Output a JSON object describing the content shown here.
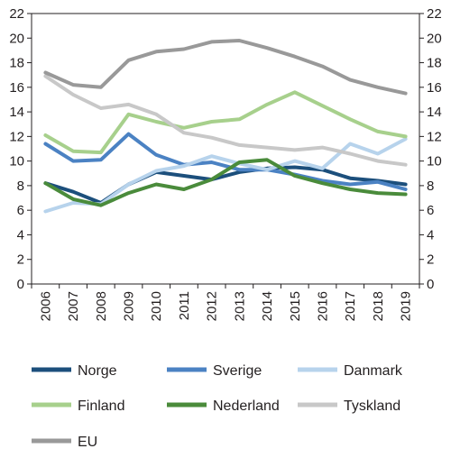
{
  "chart_data": {
    "type": "line",
    "title": "",
    "xlabel": "",
    "ylabel": "",
    "categories": [
      "2006",
      "2007",
      "2008",
      "2009",
      "2010",
      "2011",
      "2012",
      "2013",
      "2014",
      "2015",
      "2016",
      "2017",
      "2018",
      "2019"
    ],
    "ylim": [
      0,
      22
    ],
    "yticks": [
      0,
      2,
      4,
      6,
      8,
      10,
      12,
      14,
      16,
      18,
      20,
      22
    ],
    "y_axis_right_mirror": true,
    "grid": false,
    "legend_position": "bottom",
    "series": [
      {
        "name": "Norge",
        "color": "#1c4f7c",
        "values": [
          8.2,
          7.5,
          6.6,
          8.1,
          9.1,
          8.8,
          8.5,
          9.1,
          9.4,
          9.5,
          9.3,
          8.6,
          8.4,
          8.1
        ]
      },
      {
        "name": "Sverige",
        "color": "#4b82c3",
        "values": [
          11.4,
          10.0,
          10.1,
          12.2,
          10.5,
          9.7,
          9.9,
          9.3,
          9.3,
          8.9,
          8.4,
          8.1,
          8.3,
          7.7
        ]
      },
      {
        "name": "Danmark",
        "color": "#b7d3ec",
        "values": [
          5.9,
          6.6,
          6.5,
          8.1,
          9.2,
          9.6,
          10.4,
          9.8,
          9.3,
          10.0,
          9.4,
          11.4,
          10.6,
          11.8
        ]
      },
      {
        "name": "Finland",
        "color": "#a7d08c",
        "values": [
          12.1,
          10.8,
          10.7,
          13.8,
          13.2,
          12.7,
          13.2,
          13.4,
          14.6,
          15.6,
          14.5,
          13.4,
          12.4,
          12.0
        ]
      },
      {
        "name": "Nederland",
        "color": "#4a8b3b",
        "values": [
          8.2,
          6.9,
          6.4,
          7.4,
          8.1,
          7.7,
          8.5,
          9.9,
          10.1,
          8.8,
          8.2,
          7.7,
          7.4,
          7.3
        ]
      },
      {
        "name": "Tyskland",
        "color": "#c8c8c8",
        "values": [
          16.9,
          15.4,
          14.3,
          14.6,
          13.8,
          12.3,
          11.9,
          11.3,
          11.1,
          10.9,
          11.1,
          10.6,
          10.0,
          9.7
        ]
      },
      {
        "name": "EU",
        "color": "#999999",
        "values": [
          17.2,
          16.2,
          16.0,
          18.2,
          18.9,
          19.1,
          19.7,
          19.8,
          19.2,
          18.5,
          17.7,
          16.6,
          16.0,
          15.5
        ]
      }
    ]
  }
}
